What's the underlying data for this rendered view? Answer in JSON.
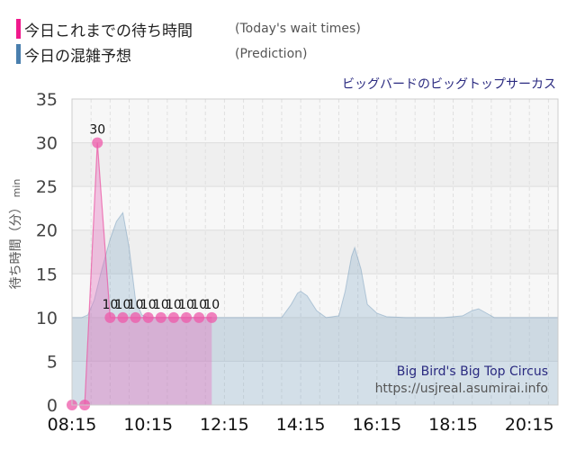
{
  "legend": [
    {
      "label": "今日これまでの待ち時間",
      "sublabel": "(Today's wait times)",
      "color": "#f0198c"
    },
    {
      "label": "今日の混雑予想",
      "sublabel": "(Prediction)",
      "color": "#4a7fae"
    }
  ],
  "attraction_title": "ビッグバードのビッグトップサーカス",
  "watermark": {
    "name": "Big Bird's Big Top Circus",
    "url": "https://usjreal.asumirai.info"
  },
  "chart_data": {
    "type": "area",
    "ylabel": "待ち時間（分）",
    "yunit": "min",
    "ylim": [
      0,
      35
    ],
    "yticks": [
      0,
      5,
      10,
      15,
      20,
      25,
      30,
      35
    ],
    "x_range": [
      "08:15",
      "21:00"
    ],
    "xticks": [
      "08:15",
      "10:15",
      "12:15",
      "14:15",
      "16:15",
      "18:15",
      "20:15"
    ],
    "grid": true,
    "series": [
      {
        "name": "今日の混雑予想",
        "color": "#4a7fae",
        "points": [
          [
            "08:15",
            10
          ],
          [
            "08:30",
            10
          ],
          [
            "08:40",
            10.3
          ],
          [
            "08:50",
            12
          ],
          [
            "09:00",
            15
          ],
          [
            "09:15",
            19
          ],
          [
            "09:25",
            21
          ],
          [
            "09:35",
            22
          ],
          [
            "09:45",
            18
          ],
          [
            "09:55",
            12
          ],
          [
            "10:05",
            10.3
          ],
          [
            "10:15",
            10
          ],
          [
            "11:00",
            10
          ],
          [
            "12:00",
            10
          ],
          [
            "13:00",
            10
          ],
          [
            "13:45",
            10
          ],
          [
            "14:00",
            11.5
          ],
          [
            "14:10",
            12.8
          ],
          [
            "14:15",
            13
          ],
          [
            "14:25",
            12.5
          ],
          [
            "14:40",
            10.8
          ],
          [
            "14:55",
            10
          ],
          [
            "15:15",
            10.2
          ],
          [
            "15:25",
            13
          ],
          [
            "15:35",
            17
          ],
          [
            "15:40",
            18
          ],
          [
            "15:50",
            15.5
          ],
          [
            "16:00",
            11.5
          ],
          [
            "16:15",
            10.5
          ],
          [
            "16:30",
            10.1
          ],
          [
            "17:00",
            10
          ],
          [
            "18:00",
            10
          ],
          [
            "18:30",
            10.2
          ],
          [
            "18:45",
            10.8
          ],
          [
            "18:55",
            11
          ],
          [
            "19:05",
            10.6
          ],
          [
            "19:20",
            10
          ],
          [
            "20:15",
            10
          ],
          [
            "21:00",
            10
          ]
        ]
      },
      {
        "name": "今日これまでの待ち時間",
        "color": "#f0198c",
        "points": [
          [
            "08:15",
            0
          ],
          [
            "08:35",
            0
          ],
          [
            "08:55",
            30
          ],
          [
            "09:15",
            10
          ],
          [
            "09:35",
            10
          ],
          [
            "09:55",
            10
          ],
          [
            "10:15",
            10
          ],
          [
            "10:35",
            10
          ],
          [
            "10:55",
            10
          ],
          [
            "11:15",
            10
          ],
          [
            "11:35",
            10
          ],
          [
            "11:55",
            10
          ]
        ],
        "labels": [
          [
            "08:55",
            "30"
          ],
          [
            "09:15",
            "10"
          ],
          [
            "09:35",
            "10"
          ],
          [
            "09:55",
            "10"
          ],
          [
            "10:15",
            "10"
          ],
          [
            "10:35",
            "10"
          ],
          [
            "10:55",
            "10"
          ],
          [
            "11:15",
            "10"
          ],
          [
            "11:35",
            "10"
          ],
          [
            "11:55",
            "10"
          ]
        ]
      }
    ]
  }
}
